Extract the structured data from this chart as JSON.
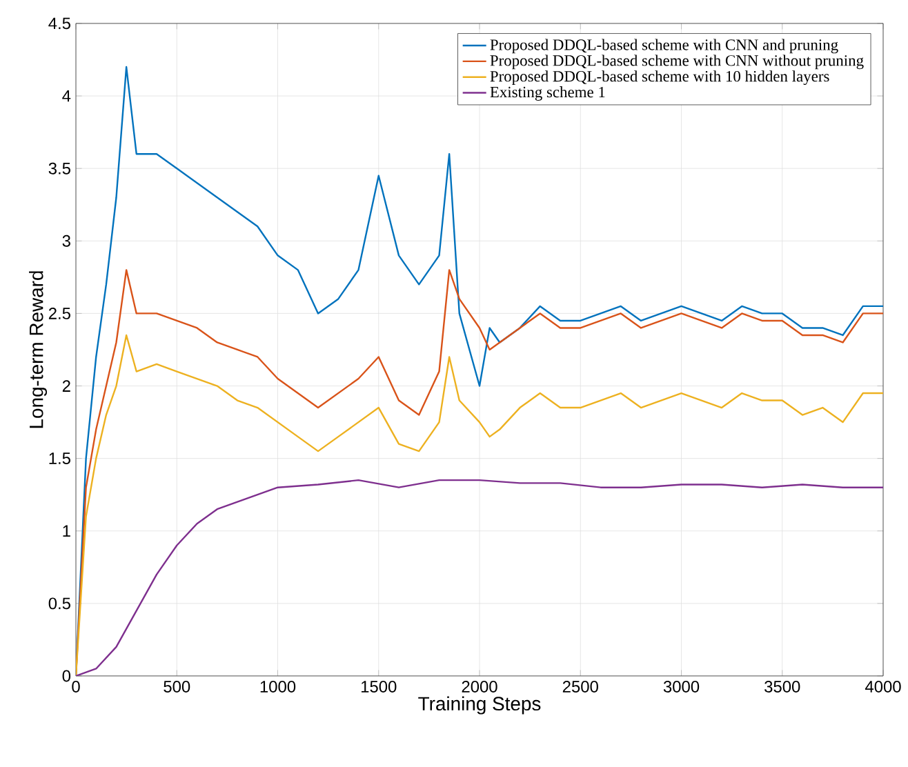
{
  "chart_data": {
    "type": "line",
    "xlabel": "Training Steps",
    "ylabel": "Long-term Reward",
    "xlim": [
      0,
      4000
    ],
    "ylim": [
      0,
      4.5
    ],
    "xticks": [
      0,
      500,
      1000,
      1500,
      2000,
      2500,
      3000,
      3500,
      4000
    ],
    "yticks": [
      0,
      0.5,
      1,
      1.5,
      2,
      2.5,
      3,
      3.5,
      4,
      4.5
    ],
    "grid": true,
    "legend": "top right",
    "marker": "none",
    "line_style": "solid",
    "series": [
      {
        "name": "Proposed DDQL-based scheme with CNN and pruning",
        "color": "#0072bd",
        "x": [
          0,
          50,
          100,
          150,
          200,
          250,
          300,
          400,
          500,
          600,
          700,
          800,
          900,
          1000,
          1100,
          1200,
          1300,
          1400,
          1500,
          1600,
          1700,
          1800,
          1850,
          1900,
          2000,
          2050,
          2100,
          2200,
          2300,
          2400,
          2500,
          2600,
          2700,
          2800,
          2900,
          3000,
          3100,
          3200,
          3300,
          3400,
          3500,
          3600,
          3700,
          3800,
          3900,
          4000
        ],
        "values": [
          0,
          1.5,
          2.2,
          2.7,
          3.3,
          4.2,
          3.6,
          3.6,
          3.5,
          3.4,
          3.3,
          3.2,
          3.1,
          2.9,
          2.8,
          2.5,
          2.6,
          2.8,
          3.45,
          2.9,
          2.7,
          2.9,
          3.6,
          2.5,
          2.0,
          2.4,
          2.3,
          2.4,
          2.55,
          2.45,
          2.45,
          2.5,
          2.55,
          2.45,
          2.5,
          2.55,
          2.5,
          2.45,
          2.55,
          2.5,
          2.5,
          2.4,
          2.4,
          2.35,
          2.55,
          2.55
        ]
      },
      {
        "name": "Proposed DDQL-based scheme with CNN without pruning",
        "color": "#d95319",
        "x": [
          0,
          50,
          100,
          150,
          200,
          250,
          300,
          400,
          500,
          600,
          700,
          800,
          900,
          1000,
          1100,
          1200,
          1300,
          1400,
          1500,
          1600,
          1700,
          1800,
          1850,
          1900,
          2000,
          2050,
          2100,
          2200,
          2300,
          2400,
          2500,
          2600,
          2700,
          2800,
          2900,
          3000,
          3100,
          3200,
          3300,
          3400,
          3500,
          3600,
          3700,
          3800,
          3900,
          4000
        ],
        "values": [
          0,
          1.3,
          1.7,
          2.0,
          2.3,
          2.8,
          2.5,
          2.5,
          2.45,
          2.4,
          2.3,
          2.25,
          2.2,
          2.05,
          1.95,
          1.85,
          1.95,
          2.05,
          2.2,
          1.9,
          1.8,
          2.1,
          2.8,
          2.6,
          2.4,
          2.25,
          2.3,
          2.4,
          2.5,
          2.4,
          2.4,
          2.45,
          2.5,
          2.4,
          2.45,
          2.5,
          2.45,
          2.4,
          2.5,
          2.45,
          2.45,
          2.35,
          2.35,
          2.3,
          2.5,
          2.5
        ]
      },
      {
        "name": "Proposed DDQL-based scheme with 10 hidden layers",
        "color": "#edb120",
        "x": [
          0,
          50,
          100,
          150,
          200,
          250,
          300,
          400,
          500,
          600,
          700,
          800,
          900,
          1000,
          1100,
          1200,
          1300,
          1400,
          1500,
          1600,
          1700,
          1800,
          1850,
          1900,
          2000,
          2050,
          2100,
          2200,
          2300,
          2400,
          2500,
          2600,
          2700,
          2800,
          2900,
          3000,
          3100,
          3200,
          3300,
          3400,
          3500,
          3600,
          3700,
          3800,
          3900,
          4000
        ],
        "values": [
          0,
          1.1,
          1.5,
          1.8,
          2.0,
          2.35,
          2.1,
          2.15,
          2.1,
          2.05,
          2.0,
          1.9,
          1.85,
          1.75,
          1.65,
          1.55,
          1.65,
          1.75,
          1.85,
          1.6,
          1.55,
          1.75,
          2.2,
          1.9,
          1.75,
          1.65,
          1.7,
          1.85,
          1.95,
          1.85,
          1.85,
          1.9,
          1.95,
          1.85,
          1.9,
          1.95,
          1.9,
          1.85,
          1.95,
          1.9,
          1.9,
          1.8,
          1.85,
          1.75,
          1.95,
          1.95
        ]
      },
      {
        "name": "Existing scheme 1",
        "color": "#7e2f8e",
        "x": [
          0,
          100,
          200,
          300,
          400,
          500,
          600,
          700,
          800,
          900,
          1000,
          1200,
          1400,
          1600,
          1800,
          2000,
          2200,
          2400,
          2600,
          2800,
          3000,
          3200,
          3400,
          3600,
          3800,
          4000
        ],
        "values": [
          0,
          0.05,
          0.2,
          0.45,
          0.7,
          0.9,
          1.05,
          1.15,
          1.2,
          1.25,
          1.3,
          1.32,
          1.35,
          1.3,
          1.35,
          1.35,
          1.33,
          1.33,
          1.3,
          1.3,
          1.32,
          1.32,
          1.3,
          1.32,
          1.3,
          1.3
        ]
      }
    ]
  }
}
